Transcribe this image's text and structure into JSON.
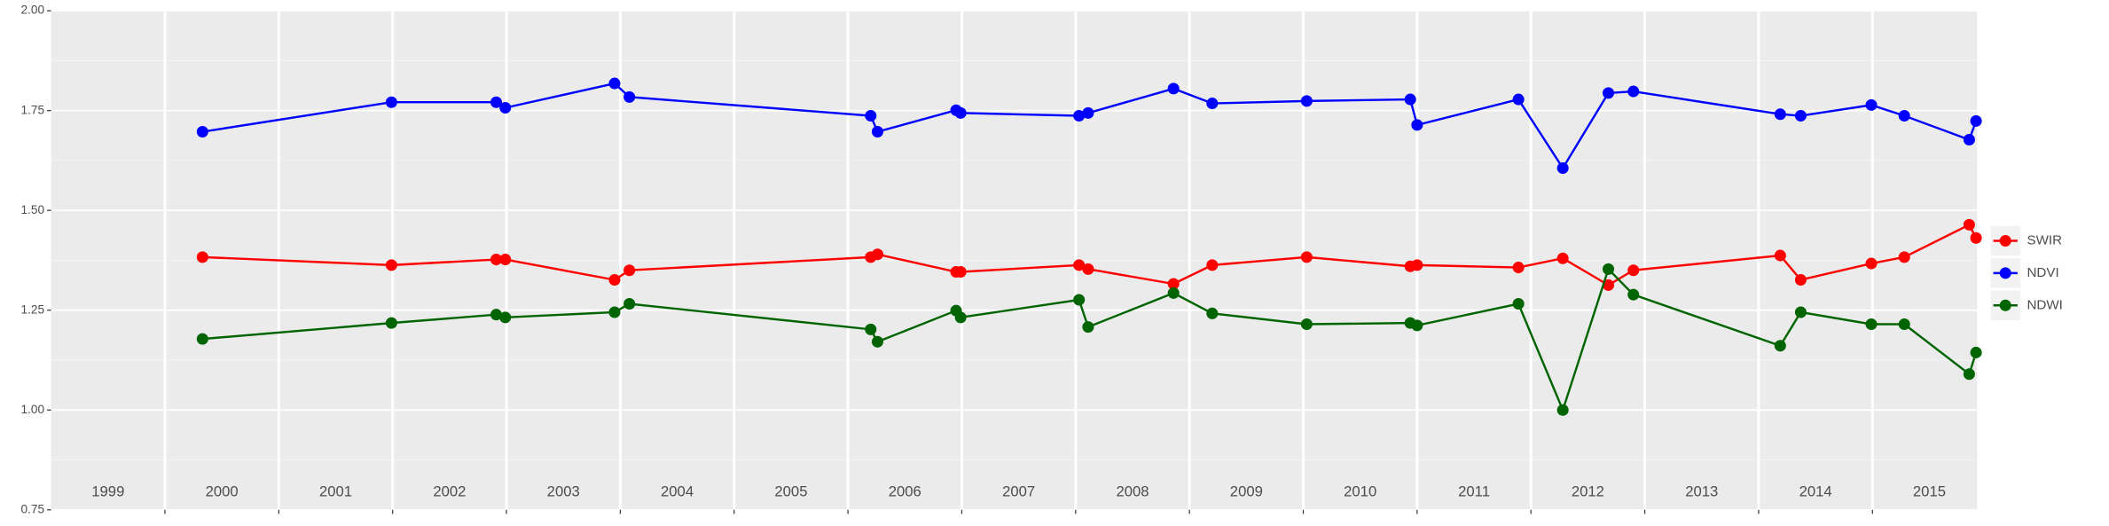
{
  "chart_data": {
    "type": "line",
    "x": [
      2000.33,
      2001.99,
      2002.91,
      2002.99,
      2003.95,
      2004.08,
      2006.2,
      2006.26,
      2006.95,
      2006.99,
      2008.03,
      2008.11,
      2008.86,
      2009.2,
      2010.03,
      2010.94,
      2011.0,
      2011.89,
      2012.28,
      2012.68,
      2012.9,
      2014.19,
      2014.37,
      2014.99,
      2015.28,
      2015.85,
      2015.91
    ],
    "series": [
      {
        "name": "SWIR",
        "color": "#ff0000",
        "values": [
          1.383,
          1.363,
          1.377,
          1.377,
          1.326,
          1.35,
          1.383,
          1.39,
          1.346,
          1.346,
          1.363,
          1.353,
          1.316,
          1.363,
          1.383,
          1.36,
          1.363,
          1.357,
          1.38,
          1.313,
          1.35,
          1.387,
          1.326,
          1.367,
          1.383,
          1.464,
          1.431
        ]
      },
      {
        "name": "NDVI",
        "color": "#0000ff",
        "values": [
          1.697,
          1.771,
          1.771,
          1.757,
          1.818,
          1.784,
          1.737,
          1.697,
          1.751,
          1.744,
          1.737,
          1.744,
          1.805,
          1.768,
          1.774,
          1.778,
          1.714,
          1.778,
          1.606,
          1.794,
          1.798,
          1.741,
          1.737,
          1.764,
          1.737,
          1.677,
          1.724
        ]
      },
      {
        "name": "NDWI",
        "color": "#006400",
        "values": [
          1.178,
          1.218,
          1.239,
          1.232,
          1.245,
          1.266,
          1.202,
          1.171,
          1.249,
          1.232,
          1.276,
          1.208,
          1.293,
          1.242,
          1.215,
          1.218,
          1.212,
          1.266,
          1.0,
          1.353,
          1.289,
          1.161,
          1.245,
          1.215,
          1.215,
          1.09,
          1.144
        ]
      }
    ],
    "xlim": [
      1999,
      2015.92
    ],
    "xticks": [
      2000,
      2001,
      2002,
      2003,
      2004,
      2005,
      2006,
      2007,
      2008,
      2009,
      2010,
      2011,
      2012,
      2013,
      2014,
      2015
    ],
    "year_labels": [
      {
        "value": 1999.5,
        "label": "1999"
      },
      {
        "value": 2000.5,
        "label": "2000"
      },
      {
        "value": 2001.5,
        "label": "2001"
      },
      {
        "value": 2002.5,
        "label": "2002"
      },
      {
        "value": 2003.5,
        "label": "2003"
      },
      {
        "value": 2004.5,
        "label": "2004"
      },
      {
        "value": 2005.5,
        "label": "2005"
      },
      {
        "value": 2006.5,
        "label": "2006"
      },
      {
        "value": 2007.5,
        "label": "2007"
      },
      {
        "value": 2008.5,
        "label": "2008"
      },
      {
        "value": 2009.5,
        "label": "2009"
      },
      {
        "value": 2010.5,
        "label": "2010"
      },
      {
        "value": 2011.5,
        "label": "2011"
      },
      {
        "value": 2012.5,
        "label": "2012"
      },
      {
        "value": 2013.5,
        "label": "2013"
      },
      {
        "value": 2014.5,
        "label": "2014"
      },
      {
        "value": 2015.5,
        "label": "2015"
      }
    ],
    "ylim": [
      0.75,
      2.0
    ],
    "yticks": [
      {
        "value": 0.75,
        "label": "0.75"
      },
      {
        "value": 1.0,
        "label": "1.00"
      },
      {
        "value": 1.25,
        "label": "1.25"
      },
      {
        "value": 1.5,
        "label": "1.50"
      },
      {
        "value": 1.75,
        "label": "1.75"
      },
      {
        "value": 2.0,
        "label": "2.00"
      }
    ],
    "grid": true,
    "minor_grid": true,
    "legend": "right"
  }
}
